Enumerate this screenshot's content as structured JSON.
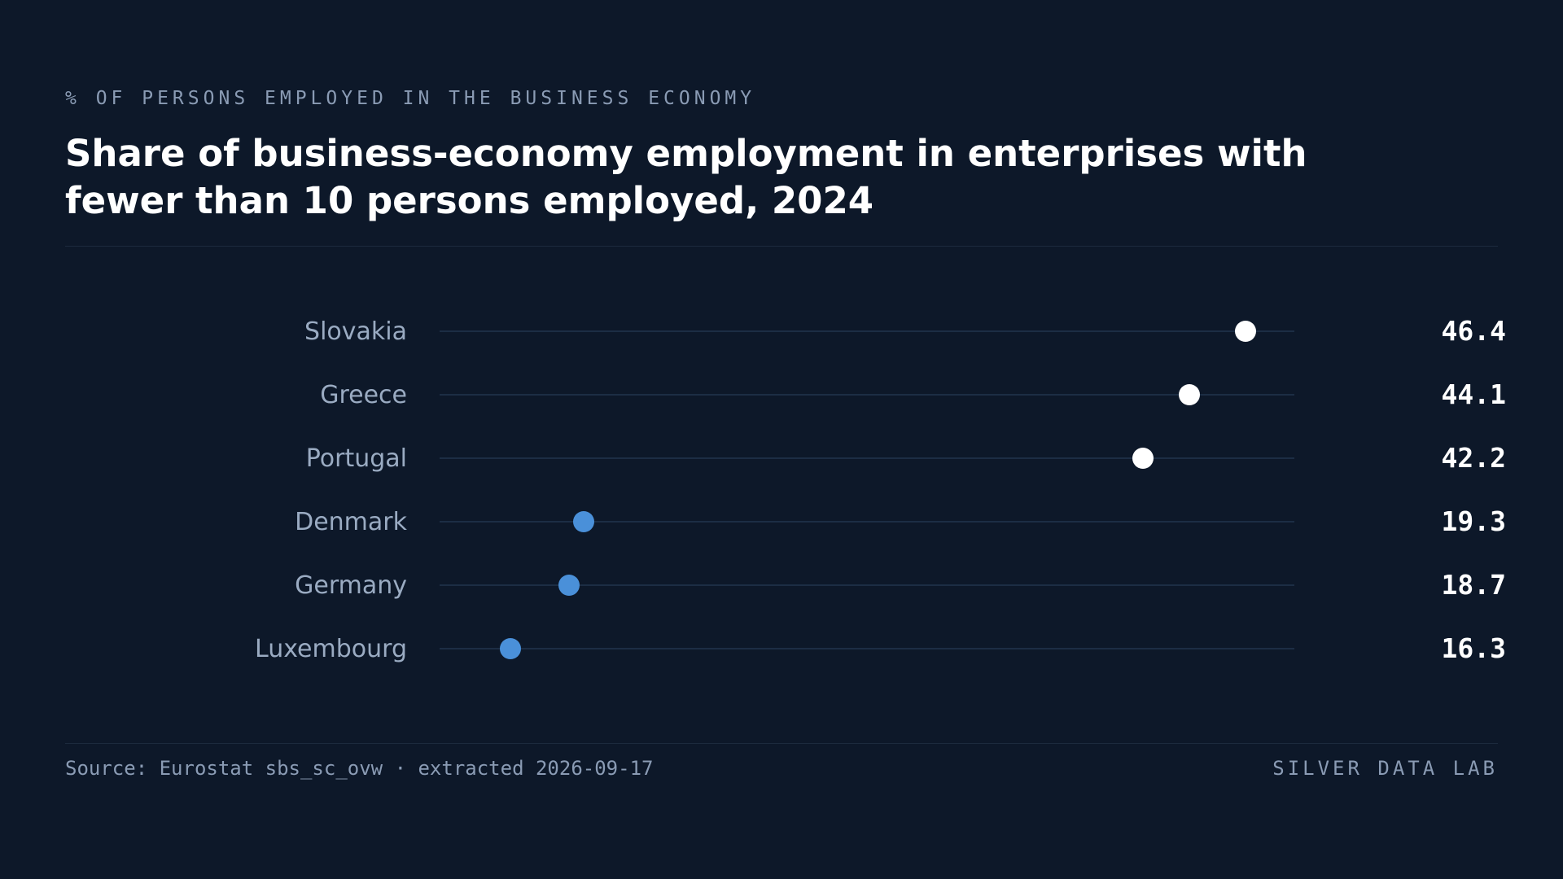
{
  "header": {
    "kicker": "% OF PERSONS EMPLOYED IN THE BUSINESS ECONOMY",
    "title": "Share of business-economy employment in enterprises with fewer than 10 persons employed, 2024"
  },
  "footer": {
    "source": "Source: Eurostat sbs_sc_ovw · extracted 2026-09-17",
    "brand": "SILVER DATA LAB"
  },
  "colors": {
    "background": "#0d1829",
    "high_dot": "#ffffff",
    "low_dot": "#4a90d9",
    "track": "#22344d",
    "label": "#9aabc2",
    "value": "#ffffff"
  },
  "chart_data": {
    "type": "scatter",
    "orientation": "horizontal-dot",
    "xlim": [
      13.4,
      48.4
    ],
    "grid": false,
    "legend": "none",
    "categories": [
      "Slovakia",
      "Greece",
      "Portugal",
      "Denmark",
      "Germany",
      "Luxembourg"
    ],
    "values": [
      46.4,
      44.1,
      42.2,
      19.3,
      18.7,
      16.3
    ],
    "value_labels": [
      "46.4",
      "44.1",
      "42.2",
      "19.3",
      "18.7",
      "16.3"
    ],
    "highlight": [
      "high",
      "high",
      "high",
      "low",
      "low",
      "low"
    ]
  }
}
